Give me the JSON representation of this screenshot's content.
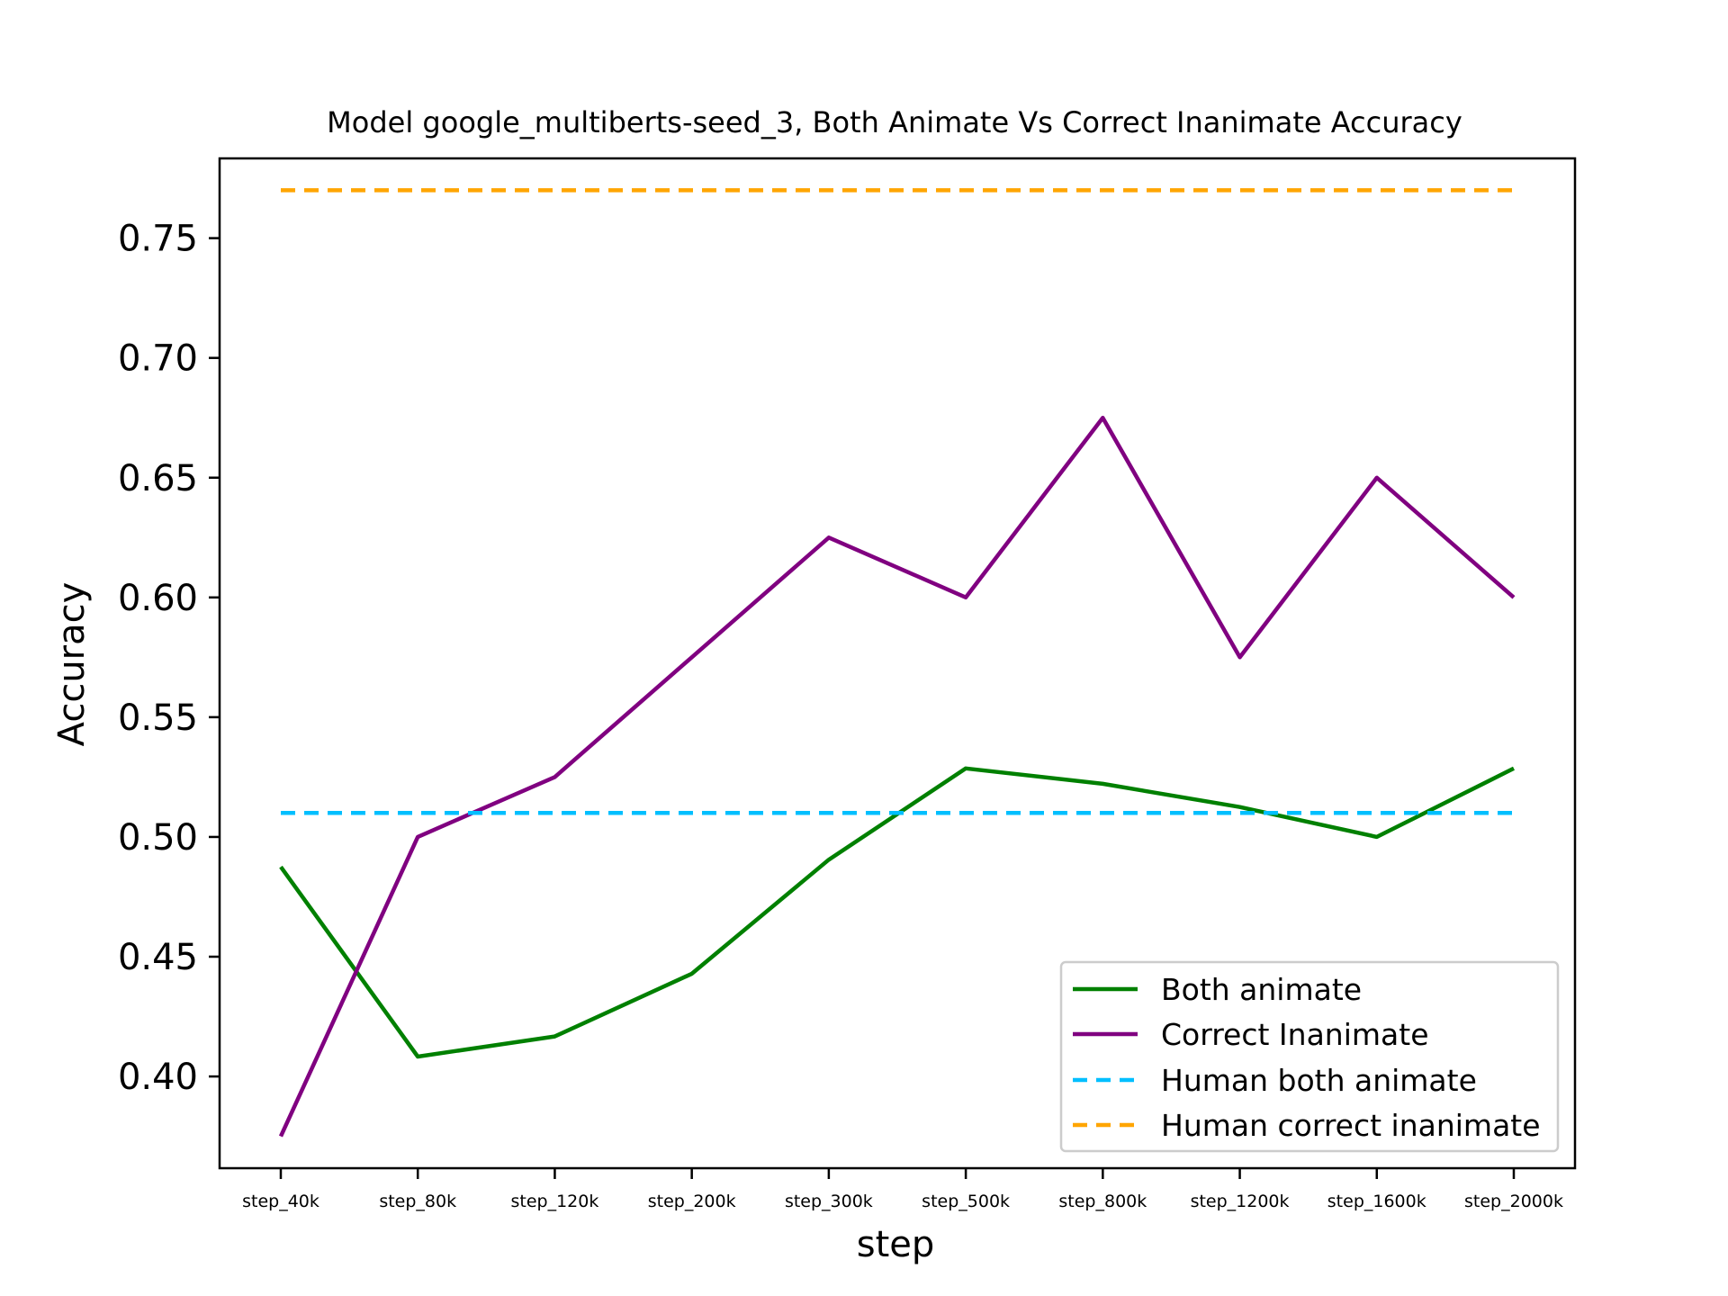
{
  "chart_data": {
    "type": "line",
    "title": "Model google_multiberts-seed_3, Both Animate Vs Correct Inanimate Accuracy",
    "xlabel": "step",
    "ylabel": "Accuracy",
    "categories": [
      "step_40k",
      "step_80k",
      "step_120k",
      "step_200k",
      "step_300k",
      "step_500k",
      "step_800k",
      "step_1200k",
      "step_1600k",
      "step_2000k"
    ],
    "yticks": [
      "0.40",
      "0.45",
      "0.50",
      "0.55",
      "0.60",
      "0.65",
      "0.70",
      "0.75"
    ],
    "ylim": [
      0.3617,
      0.7833
    ],
    "grid": false,
    "legend_position": "lower-right",
    "series": [
      {
        "name": "Both animate",
        "color": "#008000",
        "style": "solid",
        "values": [
          0.4875,
          0.4083,
          0.4167,
          0.4429,
          0.4905,
          0.5286,
          0.5222,
          0.5125,
          0.5,
          0.5286
        ]
      },
      {
        "name": "Correct Inanimate",
        "color": "#800080",
        "style": "solid",
        "values": [
          0.375,
          0.5,
          0.525,
          0.575,
          0.625,
          0.6,
          0.675,
          0.575,
          0.65,
          0.6
        ]
      },
      {
        "name": "Human both animate",
        "color": "#00BFFF",
        "style": "dashed",
        "values": [
          0.51,
          0.51,
          0.51,
          0.51,
          0.51,
          0.51,
          0.51,
          0.51,
          0.51,
          0.51
        ]
      },
      {
        "name": "Human correct inanimate",
        "color": "#FFA500",
        "style": "dashed",
        "values": [
          0.77,
          0.77,
          0.77,
          0.77,
          0.77,
          0.77,
          0.77,
          0.77,
          0.77,
          0.77
        ]
      }
    ]
  }
}
